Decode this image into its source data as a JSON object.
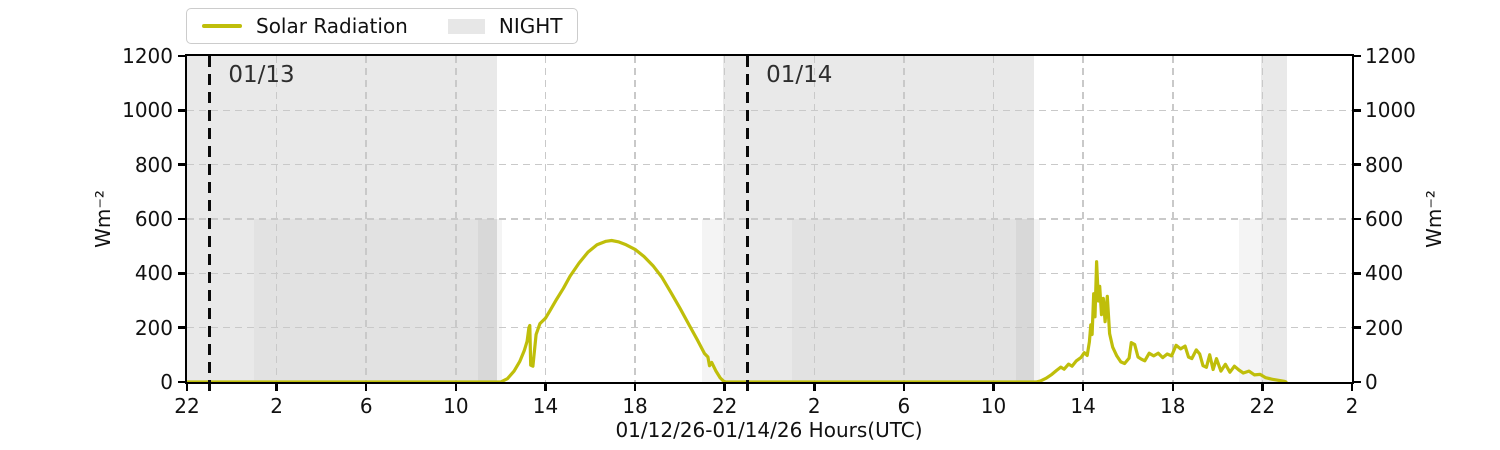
{
  "figure": {
    "xlabel": "01/12/26-01/14/26  Hours(UTC)",
    "ylabel_left": "Wm⁻²",
    "ylabel_right": "Wm⁻²",
    "legend": {
      "solar_label": "Solar Radiation",
      "night_label": "NIGHT"
    },
    "colors": {
      "solar": "#bfbe0a",
      "night_patch": "#e7e7e7",
      "grid": "#c9c9c9",
      "annotation": "#2e2e2e"
    }
  },
  "chart_data": {
    "type": "line",
    "title": "",
    "xlabel": "01/12/26-01/14/26  Hours(UTC)",
    "ylabel": "Wm⁻²",
    "xlim": [
      0,
      52
    ],
    "ylim": [
      0,
      1200
    ],
    "grid": "dashed both axes",
    "legend_position": "above top-left",
    "x_axis_note": "hours UTC, axis starts 22:00 on 01/12/26, 4-hour ticks",
    "x_ticks": [
      {
        "h": 0,
        "label": "22"
      },
      {
        "h": 4,
        "label": "2"
      },
      {
        "h": 8,
        "label": "6"
      },
      {
        "h": 12,
        "label": "10"
      },
      {
        "h": 16,
        "label": "14"
      },
      {
        "h": 20,
        "label": "18"
      },
      {
        "h": 24,
        "label": "22"
      },
      {
        "h": 28,
        "label": "2"
      },
      {
        "h": 32,
        "label": "6"
      },
      {
        "h": 36,
        "label": "10"
      },
      {
        "h": 40,
        "label": "14"
      },
      {
        "h": 44,
        "label": "18"
      },
      {
        "h": 48,
        "label": "22"
      },
      {
        "h": 52,
        "label": "2"
      }
    ],
    "y_ticks": [
      {
        "v": 0,
        "label": "0"
      },
      {
        "v": 200,
        "label": "200"
      },
      {
        "v": 400,
        "label": "400"
      },
      {
        "v": 600,
        "label": "600"
      },
      {
        "v": 800,
        "label": "800"
      },
      {
        "v": 1000,
        "label": "1000"
      },
      {
        "v": 1200,
        "label": "1200"
      }
    ],
    "annotations": [
      {
        "h": 1.0,
        "label": "01/13"
      },
      {
        "h": 25.0,
        "label": "01/14"
      }
    ],
    "night_bands": [
      [
        0,
        13.85
      ],
      [
        23.93,
        37.8
      ],
      [
        47.95,
        49.1
      ]
    ],
    "twilight_bands_0_600": [
      [
        13.0,
        14.08
      ],
      [
        23.0,
        23.93
      ],
      [
        37.0,
        38.08
      ],
      [
        46.95,
        47.95
      ]
    ],
    "subnight_bands_0_600": [
      [
        3.0,
        13.85
      ],
      [
        27.0,
        37.8
      ]
    ],
    "series": [
      {
        "name": "Solar Radiation",
        "color": "#bfbe0a",
        "points": [
          [
            0,
            0
          ],
          [
            6,
            0
          ],
          [
            12,
            0
          ],
          [
            13.8,
            0
          ],
          [
            14.0,
            0
          ],
          [
            14.3,
            12
          ],
          [
            14.6,
            40
          ],
          [
            14.85,
            75
          ],
          [
            15.05,
            115
          ],
          [
            15.18,
            150
          ],
          [
            15.26,
            200
          ],
          [
            15.3,
            208
          ],
          [
            15.34,
            62
          ],
          [
            15.44,
            58
          ],
          [
            15.58,
            175
          ],
          [
            15.75,
            215
          ],
          [
            16.0,
            235
          ],
          [
            16.2,
            262
          ],
          [
            16.5,
            305
          ],
          [
            16.8,
            345
          ],
          [
            17.1,
            390
          ],
          [
            17.5,
            438
          ],
          [
            17.9,
            478
          ],
          [
            18.3,
            505
          ],
          [
            18.7,
            518
          ],
          [
            18.95,
            521
          ],
          [
            19.25,
            516
          ],
          [
            19.6,
            505
          ],
          [
            20.0,
            488
          ],
          [
            20.4,
            462
          ],
          [
            20.8,
            428
          ],
          [
            21.2,
            385
          ],
          [
            21.6,
            330
          ],
          [
            22.0,
            272
          ],
          [
            22.4,
            212
          ],
          [
            22.8,
            152
          ],
          [
            23.1,
            105
          ],
          [
            23.25,
            92
          ],
          [
            23.32,
            60
          ],
          [
            23.42,
            72
          ],
          [
            23.6,
            42
          ],
          [
            23.8,
            15
          ],
          [
            23.95,
            3
          ],
          [
            24.05,
            0
          ],
          [
            26,
            0
          ],
          [
            30,
            0
          ],
          [
            34,
            0
          ],
          [
            37.9,
            0
          ],
          [
            38.1,
            4
          ],
          [
            38.35,
            14
          ],
          [
            38.6,
            28
          ],
          [
            38.8,
            42
          ],
          [
            39.0,
            55
          ],
          [
            39.15,
            47
          ],
          [
            39.35,
            66
          ],
          [
            39.5,
            58
          ],
          [
            39.7,
            78
          ],
          [
            39.9,
            90
          ],
          [
            40.05,
            108
          ],
          [
            40.18,
            98
          ],
          [
            40.28,
            148
          ],
          [
            40.34,
            210
          ],
          [
            40.4,
            175
          ],
          [
            40.47,
            325
          ],
          [
            40.53,
            240
          ],
          [
            40.6,
            443
          ],
          [
            40.68,
            298
          ],
          [
            40.74,
            352
          ],
          [
            40.82,
            248
          ],
          [
            40.9,
            308
          ],
          [
            40.98,
            222
          ],
          [
            41.08,
            315
          ],
          [
            41.18,
            178
          ],
          [
            41.32,
            128
          ],
          [
            41.5,
            96
          ],
          [
            41.68,
            74
          ],
          [
            41.85,
            68
          ],
          [
            42.05,
            88
          ],
          [
            42.15,
            145
          ],
          [
            42.3,
            138
          ],
          [
            42.45,
            92
          ],
          [
            42.6,
            84
          ],
          [
            42.75,
            78
          ],
          [
            42.95,
            106
          ],
          [
            43.15,
            96
          ],
          [
            43.35,
            106
          ],
          [
            43.55,
            90
          ],
          [
            43.75,
            103
          ],
          [
            43.95,
            96
          ],
          [
            44.15,
            135
          ],
          [
            44.35,
            122
          ],
          [
            44.55,
            132
          ],
          [
            44.7,
            92
          ],
          [
            44.85,
            86
          ],
          [
            45.05,
            118
          ],
          [
            45.2,
            103
          ],
          [
            45.35,
            60
          ],
          [
            45.5,
            54
          ],
          [
            45.65,
            100
          ],
          [
            45.8,
            46
          ],
          [
            45.95,
            86
          ],
          [
            46.15,
            40
          ],
          [
            46.35,
            65
          ],
          [
            46.55,
            36
          ],
          [
            46.75,
            58
          ],
          [
            46.95,
            44
          ],
          [
            47.15,
            33
          ],
          [
            47.4,
            40
          ],
          [
            47.65,
            26
          ],
          [
            47.9,
            28
          ],
          [
            48.15,
            16
          ],
          [
            48.45,
            10
          ],
          [
            48.75,
            6
          ],
          [
            49.0,
            2
          ],
          [
            49.05,
            0
          ]
        ]
      }
    ]
  }
}
